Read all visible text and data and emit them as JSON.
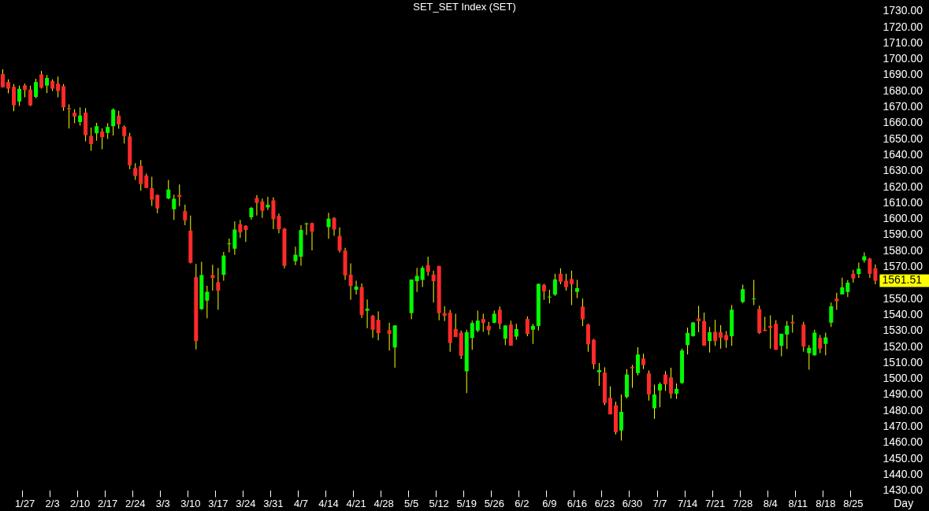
{
  "chart_data": {
    "type": "candlestick",
    "title": "SET_SET Index (SET)",
    "xlabel": "Day",
    "categories": [
      null,
      null,
      null,
      null,
      "1/27",
      null,
      null,
      null,
      null,
      "2/3",
      null,
      null,
      null,
      null,
      "2/10",
      null,
      null,
      null,
      null,
      "2/17",
      null,
      null,
      null,
      null,
      "2/24",
      null,
      null,
      null,
      null,
      "3/3",
      null,
      null,
      null,
      null,
      "3/10",
      null,
      null,
      null,
      null,
      "3/17",
      null,
      null,
      null,
      null,
      "3/24",
      null,
      null,
      null,
      null,
      "3/31",
      null,
      null,
      null,
      null,
      "4/7",
      null,
      null,
      null,
      null,
      "4/14",
      null,
      null,
      null,
      null,
      "4/21",
      null,
      null,
      null,
      null,
      "4/28",
      null,
      null,
      null,
      null,
      "5/5",
      null,
      null,
      null,
      null,
      "5/12",
      null,
      null,
      null,
      null,
      "5/19",
      null,
      null,
      null,
      null,
      "5/26",
      null,
      null,
      null,
      null,
      "6/2",
      null,
      null,
      null,
      null,
      "6/9",
      null,
      null,
      null,
      null,
      "6/16",
      null,
      null,
      null,
      null,
      "6/23",
      null,
      null,
      null,
      null,
      "6/30",
      null,
      null,
      null,
      null,
      "7/7",
      null,
      null,
      null,
      null,
      "7/14",
      null,
      null,
      null,
      null,
      "7/21",
      null,
      null,
      null,
      null,
      "7/28",
      null,
      null,
      null,
      null,
      "8/4",
      null,
      null,
      null,
      null,
      "8/11",
      null,
      null,
      null,
      null,
      "8/18",
      null,
      null,
      null,
      null,
      "8/25",
      null,
      null,
      null,
      null
    ],
    "ohlc": [
      [
        1690.8,
        1693.7,
        1682.3,
        1682.5
      ],
      [
        1685.7,
        1687.5,
        1678.7,
        1681.7
      ],
      [
        1682.8,
        1684.5,
        1667.5,
        1671.2
      ],
      [
        1673.5,
        1683.5,
        1670.8,
        1681.5
      ],
      [
        1683.7,
        1684.8,
        1676.2,
        1680.8
      ],
      [
        1681,
        1683.5,
        1670.7,
        1671.2
      ],
      [
        1676.5,
        1687.8,
        1675.7,
        1685.7
      ],
      [
        1690.5,
        1692.8,
        1681.7,
        1682.3
      ],
      [
        1683.5,
        1690.2,
        1678.8,
        1688.3
      ],
      [
        1686.5,
        1687.5,
        1680.2,
        1681.7
      ],
      [
        1684.8,
        1689.2,
        1676.2,
        1680.2
      ],
      [
        1683.2,
        1684.5,
        1667.8,
        1670
      ],
      [
        1669.5,
        1671.8,
        1656.7,
        1668.7
      ],
      [
        1666.5,
        1668.7,
        1660,
        1664.2
      ],
      [
        1660.8,
        1669.8,
        1658.5,
        1664.8
      ],
      [
        1666.7,
        1669.5,
        1648.7,
        1652.5
      ],
      [
        1652,
        1657.3,
        1642.8,
        1647
      ],
      [
        1653.7,
        1660.3,
        1649,
        1658.2
      ],
      [
        1654.8,
        1656.8,
        1643.7,
        1651.2
      ],
      [
        1654,
        1660,
        1650.2,
        1657.7
      ],
      [
        1658.2,
        1669.3,
        1652.2,
        1668.5
      ],
      [
        1664.8,
        1667.8,
        1656.5,
        1659.2
      ],
      [
        1657.8,
        1658.7,
        1647.3,
        1652
      ],
      [
        1651.7,
        1654,
        1631.2,
        1633.7
      ],
      [
        1632,
        1635,
        1624.5,
        1627
      ],
      [
        1633.3,
        1637,
        1617.8,
        1622
      ],
      [
        1627.2,
        1628.5,
        1619.5,
        1619.5
      ],
      [
        1619.3,
        1626.5,
        1608.3,
        1612.2
      ],
      [
        1615.2,
        1615.3,
        1603.7,
        1606.7
      ],
      null,
      [
        1613,
        1624.5,
        1612.5,
        1618.5
      ],
      [
        1606.2,
        1615.3,
        1599.5,
        1612.7
      ],
      [
        1615,
        1621.7,
        1608.2,
        1614
      ],
      [
        1605,
        1609,
        1596.2,
        1599.2
      ],
      [
        1592.8,
        1602.3,
        1572.3,
        1572.7
      ],
      [
        1563.8,
        1572,
        1518.5,
        1523.7
      ],
      [
        1543.7,
        1573.3,
        1543.3,
        1565
      ],
      [
        1549,
        1558.3,
        1538,
        1554.5
      ],
      [
        1565,
        1571.5,
        1555.2,
        1563.2
      ],
      [
        1560.5,
        1569.5,
        1543.2,
        1555.2
      ],
      [
        1565.2,
        1579.5,
        1561.5,
        1577.2
      ],
      [
        1584.3,
        1587.8,
        1579.2,
        1584.8
      ],
      [
        1581.5,
        1598.5,
        1577.7,
        1593.5
      ],
      [
        1596.8,
        1599.5,
        1588.2,
        1591.7
      ],
      [
        1595.8,
        1596.2,
        1585.8,
        1593.2
      ],
      [
        1601.2,
        1607.7,
        1599.7,
        1607
      ],
      [
        1613.2,
        1615,
        1602.3,
        1610.2
      ],
      [
        1611,
        1612.8,
        1600.8,
        1605.2
      ],
      [
        1607.3,
        1614,
        1605.7,
        1609
      ],
      [
        1611.7,
        1613.7,
        1593.8,
        1600
      ],
      [
        1602,
        1603.5,
        1591.2,
        1593.7
      ],
      [
        1594,
        1594.5,
        1569.2,
        1570.8
      ],
      null,
      [
        1573.7,
        1582.8,
        1571.2,
        1577.7
      ],
      [
        1576.5,
        1596.2,
        1570.8,
        1593.2
      ],
      [
        1596.8,
        1597.8,
        1590,
        1597.2
      ],
      [
        1597.5,
        1597.8,
        1580.5,
        1592.2
      ],
      null,
      null,
      [
        1595,
        1604,
        1587.7,
        1600.3
      ],
      [
        1600.7,
        1601.2,
        1589.5,
        1593.5
      ],
      [
        1589.5,
        1594.8,
        1579.2,
        1580.3
      ],
      [
        1580.3,
        1582,
        1562,
        1564.8
      ],
      [
        1565.2,
        1572.3,
        1549.5,
        1558.2
      ],
      [
        1555.8,
        1561.5,
        1552.8,
        1557.8
      ],
      [
        1557.5,
        1559.8,
        1538.2,
        1540
      ],
      [
        1542.7,
        1549.8,
        1531.8,
        1544
      ],
      [
        1539.5,
        1540,
        1525.8,
        1530.8
      ],
      [
        1537,
        1542.3,
        1524.2,
        1528.7
      ],
      null,
      [
        1530.5,
        1535.3,
        1517.8,
        1528.2
      ],
      [
        1519.7,
        1533.7,
        1507,
        1533.5
      ],
      null,
      null,
      [
        1541.2,
        1562.2,
        1537.3,
        1562.2
      ],
      [
        1561.2,
        1569.5,
        1554.5,
        1564.5
      ],
      [
        1562,
        1570.7,
        1557.5,
        1569.5
      ],
      [
        1571.2,
        1576.5,
        1564.5,
        1567
      ],
      [
        1565.3,
        1567.8,
        1547.8,
        1561.2
      ],
      [
        1570.7,
        1570.7,
        1536.7,
        1541.2
      ],
      [
        1541.2,
        1545.5,
        1536.2,
        1539.5
      ],
      [
        1541.5,
        1543.3,
        1517,
        1522.5
      ],
      [
        1531.2,
        1540.8,
        1526.2,
        1526.2
      ],
      [
        1529,
        1530.3,
        1512.5,
        1514.5
      ],
      [
        1504.8,
        1530.8,
        1491.2,
        1529.2
      ],
      [
        1525.7,
        1536.5,
        1518.2,
        1535
      ],
      [
        1530.3,
        1542.8,
        1529.2,
        1536.5
      ],
      [
        1537.5,
        1540.8,
        1529.5,
        1535
      ],
      [
        1533.2,
        1535.8,
        1527.5,
        1530.5
      ],
      [
        1535.2,
        1542.8,
        1534.8,
        1540.8
      ],
      [
        1543.3,
        1545.3,
        1531.2,
        1534.5
      ],
      [
        1525.2,
        1533.5,
        1521.2,
        1533.5
      ],
      [
        1534,
        1536.5,
        1520.8,
        1520.8
      ],
      [
        1526.5,
        1534.5,
        1524.5,
        1531.2
      ],
      null,
      [
        1537.5,
        1539.2,
        1526.7,
        1528.2
      ],
      [
        1530.8,
        1534.5,
        1522,
        1533.2
      ],
      [
        1533.2,
        1559.5,
        1530.3,
        1559.5
      ],
      [
        1558.8,
        1559.5,
        1549.5,
        1554.8
      ],
      [
        1551,
        1555.8,
        1547.3,
        1551.5
      ],
      [
        1552.8,
        1565.8,
        1552,
        1562.3
      ],
      [
        1565.8,
        1569.2,
        1559.2,
        1560.8
      ],
      [
        1561.5,
        1565.8,
        1555.3,
        1557.5
      ],
      [
        1562.5,
        1567.8,
        1546.2,
        1559.2
      ],
      [
        1554.5,
        1562,
        1550.7,
        1556.8
      ],
      [
        1545.3,
        1550.3,
        1533.2,
        1537.3
      ],
      [
        1534,
        1534.5,
        1517,
        1521.7
      ],
      [
        1524.5,
        1525,
        1506.2,
        1509.2
      ],
      [
        1504.2,
        1510,
        1495.7,
        1505.5
      ],
      [
        1504,
        1507.3,
        1483.7,
        1485
      ],
      [
        1488.2,
        1495.3,
        1477.8,
        1477.8
      ],
      [
        1483.5,
        1485.7,
        1465.3,
        1466.7
      ],
      [
        1467.7,
        1490.3,
        1461.5,
        1479.5
      ],
      [
        1488.7,
        1506.2,
        1487.8,
        1502.8
      ],
      [
        1507.5,
        1508.8,
        1494.5,
        1506.7
      ],
      [
        1503.7,
        1519.8,
        1502.3,
        1515.3
      ],
      [
        1512.8,
        1515.8,
        1506.2,
        1508.7
      ],
      [
        1503.5,
        1505.3,
        1486.5,
        1490.3
      ],
      [
        1481.7,
        1496.5,
        1475,
        1490.3
      ],
      [
        1492.8,
        1497.8,
        1482.3,
        1496.8
      ],
      [
        1502.8,
        1505,
        1492.5,
        1496.7
      ],
      [
        1501,
        1507,
        1487.8,
        1490.8
      ],
      [
        1490.8,
        1497.2,
        1487.5,
        1493.8
      ],
      [
        1497.5,
        1519,
        1497,
        1517.8
      ],
      [
        1521.2,
        1532.2,
        1515.3,
        1528.8
      ],
      [
        1526.8,
        1535.7,
        1526.5,
        1535.3
      ],
      [
        1537.8,
        1545.7,
        1529.2,
        1536.2
      ],
      [
        1536.2,
        1541.5,
        1520.8,
        1520.8
      ],
      [
        1523.7,
        1532.5,
        1516.5,
        1529.2
      ],
      [
        1529.5,
        1537,
        1520.7,
        1523.7
      ],
      [
        1529.2,
        1533.7,
        1519,
        1525.8
      ],
      [
        1527.5,
        1530,
        1519.5,
        1524.2
      ],
      [
        1526.7,
        1546.2,
        1520.7,
        1543.3
      ],
      null,
      [
        1548.2,
        1559,
        1547.5,
        1556.2
      ],
      null,
      [
        1549.8,
        1562,
        1546.2,
        1550.2
      ],
      [
        1543.7,
        1545.8,
        1528.2,
        1528.7
      ],
      [
        1530.8,
        1539,
        1530,
        1530
      ],
      [
        1533.2,
        1539.8,
        1519,
        1532
      ],
      [
        1534.5,
        1536.7,
        1518.2,
        1518.2
      ],
      [
        1520.7,
        1528.3,
        1514.2,
        1528.3
      ],
      [
        1527.8,
        1536.2,
        1518.7,
        1533.3
      ],
      [
        1535.7,
        1540,
        1529,
        1534.8
      ],
      null,
      [
        1534,
        1535.8,
        1517,
        1520.3
      ],
      [
        1516.2,
        1521.2,
        1505.8,
        1519.5
      ],
      [
        1514.8,
        1530.8,
        1514.5,
        1529
      ],
      [
        1525.7,
        1527.5,
        1516.2,
        1519
      ],
      [
        1522,
        1529,
        1514.8,
        1526
      ],
      [
        1535.2,
        1547.8,
        1532.5,
        1545.5
      ],
      [
        1550.3,
        1554,
        1543.3,
        1548.7
      ],
      [
        1552.8,
        1563.3,
        1552.8,
        1557.3
      ],
      [
        1554.5,
        1561.8,
        1551.2,
        1560.2
      ],
      [
        1565.8,
        1568.3,
        1560.3,
        1562.8
      ],
      [
        1565.7,
        1572.8,
        1563.2,
        1569
      ],
      [
        1574.2,
        1579.2,
        1572.8,
        1576.7
      ],
      [
        1575.3,
        1575.8,
        1563.2,
        1565.8
      ],
      [
        1569.2,
        1571.7,
        1559.2,
        1561.51
      ]
    ],
    "color": "#ffff00",
    "colors": [
      "#ff2a2a",
      "#ff2a2a",
      "#ff2a2a",
      "#00ff00",
      "#ff2a2a",
      "#ff2a2a",
      "#00ff00",
      "#ff2a2a",
      "#00ff00",
      "#ff2a2a",
      "#ff2a2a",
      "#ff2a2a",
      "#ff2a2a",
      "#ff2a2a",
      "#00ff00",
      "#ff2a2a",
      "#ff2a2a",
      "#00ff00",
      "#ff2a2a",
      "#00ff00",
      "#00ff00",
      "#ff2a2a",
      "#ff2a2a",
      "#ff2a2a",
      "#ff2a2a",
      "#ff2a2a",
      "#ff2a2a",
      "#ff2a2a",
      "#ff2a2a",
      null,
      "#00ff00",
      "#00ff00",
      "#ff2a2a",
      "#ff2a2a",
      "#ff2a2a",
      "#ff2a2a",
      "#00ff00",
      "#00ff00",
      "#ff2a2a",
      "#ff2a2a",
      "#00ff00",
      "#00ff00",
      "#00ff00",
      "#ff2a2a",
      "#ff2a2a",
      "#00ff00",
      "#ff2a2a",
      "#ff2a2a",
      "#00ff00",
      "#ff2a2a",
      "#ff2a2a",
      "#ff2a2a",
      null,
      "#00ff00",
      "#00ff00",
      "#00ff00",
      "#ff2a2a",
      null,
      null,
      "#00ff00",
      "#ff2a2a",
      "#ff2a2a",
      "#ff2a2a",
      "#ff2a2a",
      "#00ff00",
      "#ff2a2a",
      "#00ff00",
      "#ff2a2a",
      "#ff2a2a",
      null,
      "#ff2a2a",
      "#00ff00",
      null,
      null,
      "#00ff00",
      "#00ff00",
      "#00ff00",
      "#ff2a2a",
      "#ff2a2a",
      "#ff2a2a",
      "#ff2a2a",
      "#ff2a2a",
      "#ff2a2a",
      "#ff2a2a",
      "#00ff00",
      "#00ff00",
      "#00ff00",
      "#ff2a2a",
      "#ff2a2a",
      "#00ff00",
      "#ff2a2a",
      "#00ff00",
      "#ff2a2a",
      "#00ff00",
      null,
      "#ff2a2a",
      "#00ff00",
      "#00ff00",
      "#ff2a2a",
      "#00ff00",
      "#00ff00",
      "#ff2a2a",
      "#ff2a2a",
      "#ff2a2a",
      "#00ff00",
      "#ff2a2a",
      "#ff2a2a",
      "#ff2a2a",
      "#00ff00",
      "#ff2a2a",
      "#ff2a2a",
      "#ff2a2a",
      "#00ff00",
      "#00ff00",
      "#ff2a2a",
      "#00ff00",
      "#ff2a2a",
      "#ff2a2a",
      "#00ff00",
      "#00ff00",
      "#ff2a2a",
      "#ff2a2a",
      "#00ff00",
      "#00ff00",
      "#00ff00",
      "#00ff00",
      "#ff2a2a",
      "#ff2a2a",
      "#00ff00",
      "#ff2a2a",
      "#ff2a2a",
      "#ff2a2a",
      "#00ff00",
      null,
      "#00ff00",
      null,
      "#00ff00",
      "#ff2a2a",
      "#ff2a2a",
      "#ff2a2a",
      "#ff2a2a",
      "#00ff00",
      "#00ff00",
      "#ff2a2a",
      null,
      "#ff2a2a",
      "#00ff00",
      "#00ff00",
      "#ff2a2a",
      "#00ff00",
      "#00ff00",
      "#ff2a2a",
      "#00ff00",
      "#00ff00",
      "#ff2a2a",
      "#00ff00",
      "#00ff00",
      "#ff2a2a",
      "#ff2a2a"
    ],
    "ylim": [
      1430,
      1730
    ],
    "yticks": [
      {
        "value": 1430,
        "label": "1430.00"
      },
      {
        "value": 1440,
        "label": "1440.00"
      },
      {
        "value": 1450,
        "label": "1450.00"
      },
      {
        "value": 1460,
        "label": "1460.00"
      },
      {
        "value": 1470,
        "label": "1470.00"
      },
      {
        "value": 1480,
        "label": "1480.00"
      },
      {
        "value": 1490,
        "label": "1490.00"
      },
      {
        "value": 1500,
        "label": "1500.00"
      },
      {
        "value": 1510,
        "label": "1510.00"
      },
      {
        "value": 1520,
        "label": "1520.00"
      },
      {
        "value": 1530,
        "label": "1530.00"
      },
      {
        "value": 1540,
        "label": "1540.00"
      },
      {
        "value": 1550,
        "label": "1550.00"
      },
      {
        "value": 1570,
        "label": "1570.00"
      },
      {
        "value": 1580,
        "label": "1580.00"
      },
      {
        "value": 1590,
        "label": "1590.00"
      },
      {
        "value": 1600,
        "label": "1600.00"
      },
      {
        "value": 1610,
        "label": "1610.00"
      },
      {
        "value": 1620,
        "label": "1620.00"
      },
      {
        "value": 1630,
        "label": "1630.00"
      },
      {
        "value": 1640,
        "label": "1640.00"
      },
      {
        "value": 1650,
        "label": "1650.00"
      },
      {
        "value": 1660,
        "label": "1660.00"
      },
      {
        "value": 1670,
        "label": "1670.00"
      },
      {
        "value": 1680,
        "label": "1680.00"
      },
      {
        "value": 1690,
        "label": "1690.00"
      },
      {
        "value": 1700,
        "label": "1700.00"
      },
      {
        "value": 1710,
        "label": "1710.00"
      },
      {
        "value": 1720,
        "label": "1720.00"
      },
      {
        "value": 1730,
        "label": "1730.00"
      }
    ],
    "annotations": [
      "1561.51"
    ]
  }
}
